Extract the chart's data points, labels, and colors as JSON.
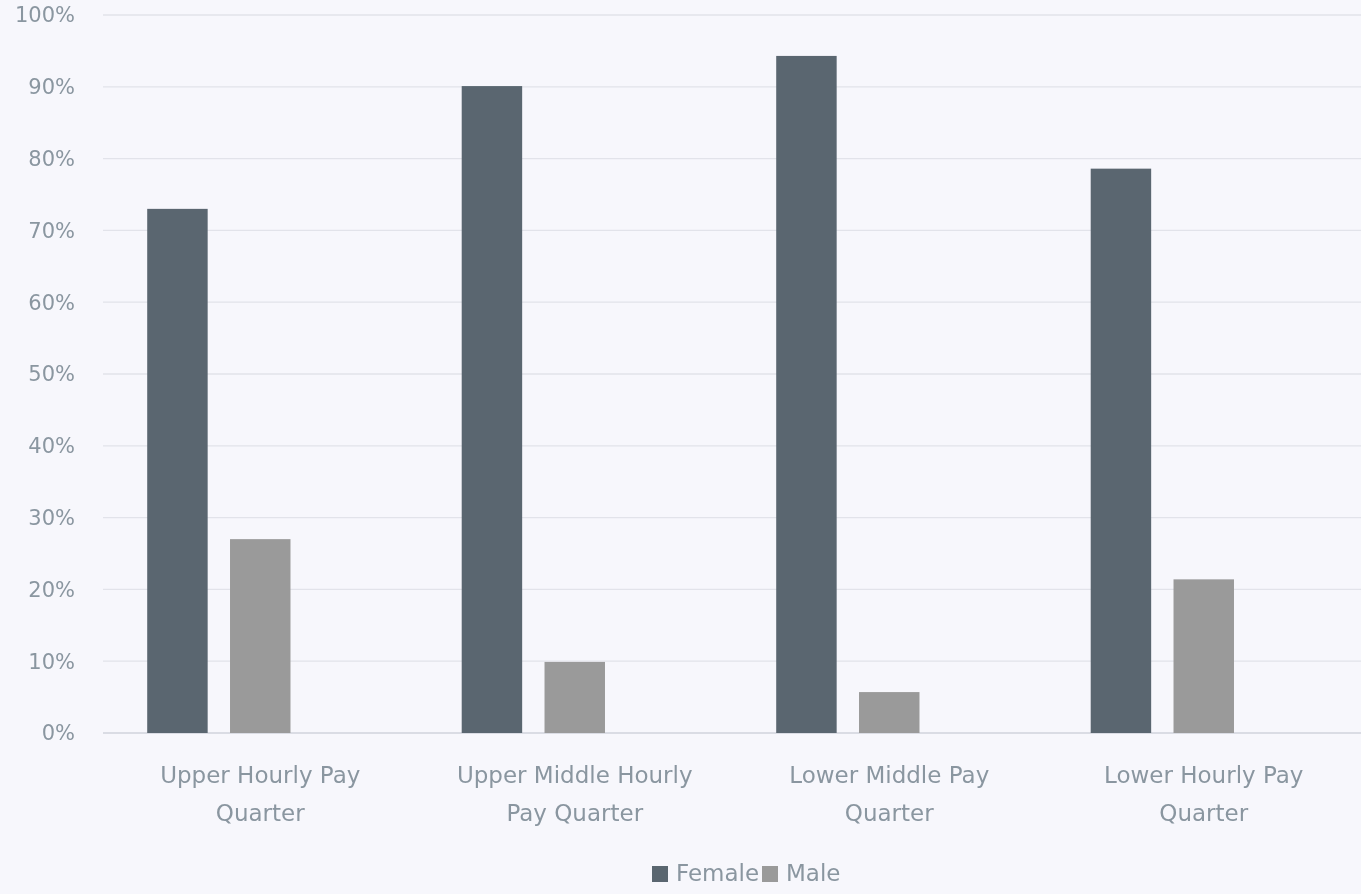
{
  "chart_data": {
    "type": "bar",
    "categories": [
      "Upper Hourly Pay Quarter",
      "Upper Middle Hourly Pay Quarter",
      "Lower Middle Pay Quarter",
      "Lower Hourly Pay Quarter"
    ],
    "series": [
      {
        "name": "Female",
        "color": "#5a6670",
        "values": [
          73.0,
          90.1,
          94.3,
          78.6
        ]
      },
      {
        "name": "Male",
        "color": "#9a9a9a",
        "values": [
          27.0,
          9.9,
          5.7,
          21.4
        ]
      }
    ],
    "ylim": [
      0,
      100
    ],
    "yticks": [
      {
        "value": 0,
        "label": "0%"
      },
      {
        "value": 10,
        "label": "10%"
      },
      {
        "value": 20,
        "label": "20%"
      },
      {
        "value": 30,
        "label": "30%"
      },
      {
        "value": 40,
        "label": "40%"
      },
      {
        "value": 50,
        "label": "50%"
      },
      {
        "value": 60,
        "label": "60%"
      },
      {
        "value": 70,
        "label": "70%"
      },
      {
        "value": 80,
        "label": "80%"
      },
      {
        "value": 90,
        "label": "90%"
      },
      {
        "value": 100,
        "label": "100%"
      }
    ],
    "grid": "y",
    "legend": "bottom"
  }
}
